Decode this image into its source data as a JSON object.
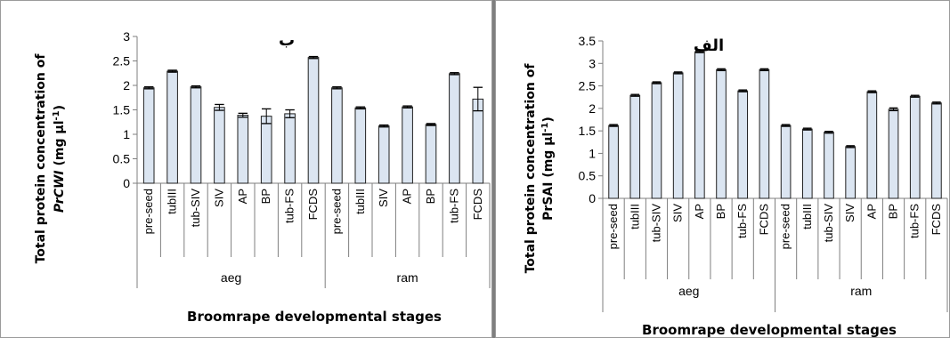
{
  "chart_data": [
    {
      "type": "bar",
      "annotation": "ب",
      "ylabel_line1": "Total protein concentration of",
      "ylabel_line2_italic": "PrCWI",
      "ylabel_line2_rest": " (mg µl",
      "ylabel_sup": "-1",
      "ylabel_close": ")",
      "xlabel": "Broomrape developmental stages",
      "ylim": [
        0,
        3
      ],
      "yticks": [
        "0",
        "0.5",
        "1",
        "1.5",
        "2",
        "2.5",
        "3"
      ],
      "categories": [
        "pre-seed",
        "tubIII",
        "tub-SIV",
        "SIV",
        "AP",
        "BP",
        "tub-FS",
        "FCDS",
        "pre-seed",
        "tubIII",
        "SIV",
        "AP",
        "BP",
        "tub-FS",
        "FCDS"
      ],
      "groups": [
        "aeg",
        "ram"
      ],
      "values": [
        1.95,
        2.29,
        1.97,
        1.55,
        1.39,
        1.37,
        1.42,
        2.57,
        1.95,
        1.54,
        1.17,
        1.56,
        1.2,
        2.24,
        1.72
      ],
      "errors": [
        0.02,
        0.02,
        0.02,
        0.06,
        0.04,
        0.15,
        0.08,
        0.02,
        0.02,
        0.02,
        0.02,
        0.02,
        0.02,
        0.02,
        0.24
      ],
      "grid": false,
      "bar_fill": "#dbe5f1",
      "bar_stroke": "#1f1f1f"
    },
    {
      "type": "bar",
      "annotation": "الف",
      "ylabel_line1": "Total protein concentration of",
      "ylabel_line2_italic": "",
      "ylabel_line2_rest": "PrSAI (mg µl",
      "ylabel_sup": "-1",
      "ylabel_close": ")",
      "xlabel": "Broomrape developmental stages",
      "ylim": [
        0,
        3.5
      ],
      "yticks": [
        "0",
        "0.5",
        "1",
        "1.5",
        "2",
        "2.5",
        "3",
        "3.5"
      ],
      "categories": [
        "pre-seed",
        "tubIII",
        "tub-SIV",
        "SIV",
        "AP",
        "BP",
        "tub-FS",
        "FCDS",
        "pre-seed",
        "tubIII",
        "tub-SIV",
        "SIV",
        "AP",
        "BP",
        "tub-FS",
        "FCDS"
      ],
      "groups": [
        "aeg",
        "ram"
      ],
      "values": [
        1.62,
        2.29,
        2.57,
        2.79,
        3.26,
        2.86,
        2.39,
        2.86,
        1.62,
        1.54,
        1.47,
        1.15,
        2.37,
        1.98,
        2.27,
        2.12
      ],
      "errors": [
        0.02,
        0.02,
        0.02,
        0.02,
        0.02,
        0.02,
        0.02,
        0.02,
        0.02,
        0.02,
        0.02,
        0.02,
        0.02,
        0.03,
        0.02,
        0.02
      ],
      "grid": false,
      "bar_fill": "#dbe5f1",
      "bar_stroke": "#1f1f1f"
    }
  ]
}
